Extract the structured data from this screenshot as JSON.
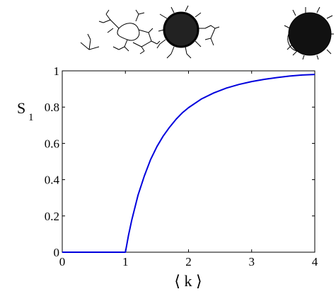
{
  "chart_data": {
    "type": "line",
    "xlabel": "⟨ k ⟩",
    "ylabel": "S",
    "ylabel_subscript": "1",
    "xlim": [
      0,
      4
    ],
    "ylim": [
      0,
      1
    ],
    "xticks": [
      0,
      1,
      2,
      3,
      4
    ],
    "yticks": [
      0,
      0.2,
      0.4,
      0.6,
      0.8,
      1
    ],
    "xtick_labels": [
      "0",
      "1",
      "2",
      "3",
      "4"
    ],
    "ytick_labels": [
      "0",
      "0.2",
      "0.4",
      "0.6",
      "0.8",
      "1"
    ],
    "grid": false,
    "series": [
      {
        "color": "#0000dd",
        "x": [
          0,
          0.5,
          1.0,
          1.05,
          1.1,
          1.2,
          1.3,
          1.4,
          1.5,
          1.6,
          1.7,
          1.8,
          1.9,
          2.0,
          2.2,
          2.4,
          2.6,
          2.8,
          3.0,
          3.2,
          3.4,
          3.6,
          3.8,
          4.0
        ],
        "values": [
          0,
          0,
          0,
          0.094,
          0.176,
          0.314,
          0.42,
          0.511,
          0.583,
          0.641,
          0.689,
          0.732,
          0.768,
          0.797,
          0.844,
          0.878,
          0.905,
          0.925,
          0.941,
          0.953,
          0.963,
          0.971,
          0.977,
          0.98
        ]
      }
    ]
  },
  "illustrations": [
    {
      "icon": "small-tree-network-icon"
    },
    {
      "icon": "branching-cluster-network-icon"
    },
    {
      "icon": "dense-cluster-network-icon"
    },
    {
      "icon": "giant-component-network-icon"
    }
  ]
}
